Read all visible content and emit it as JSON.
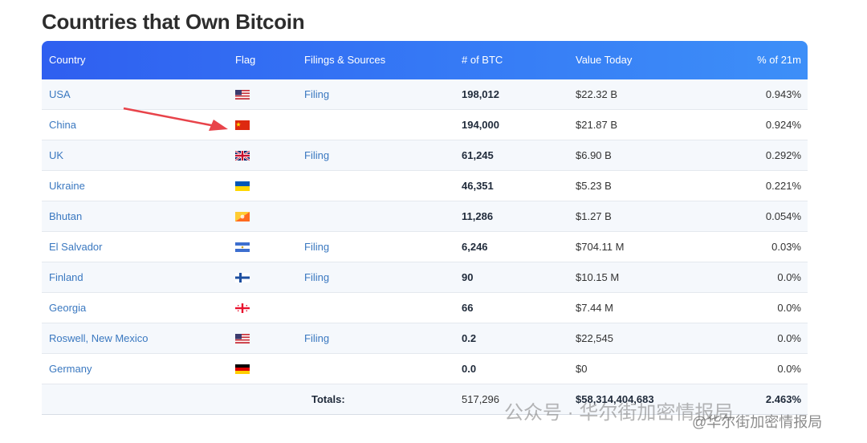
{
  "title": "Countries that Own Bitcoin",
  "table": {
    "headers": [
      "Country",
      "Flag",
      "Filings & Sources",
      "# of BTC",
      "Value Today",
      "% of 21m"
    ],
    "rows": [
      {
        "country": "USA",
        "filing": "Filing",
        "btc": "198,012",
        "value": "$22.32 B",
        "pct": "0.943%"
      },
      {
        "country": "China",
        "filing": null,
        "btc": "194,000",
        "value": "$21.87 B",
        "pct": "0.924%"
      },
      {
        "country": "UK",
        "filing": "Filing",
        "btc": "61,245",
        "value": "$6.90 B",
        "pct": "0.292%"
      },
      {
        "country": "Ukraine",
        "filing": null,
        "btc": "46,351",
        "value": "$5.23 B",
        "pct": "0.221%"
      },
      {
        "country": "Bhutan",
        "filing": null,
        "btc": "11,286",
        "value": "$1.27 B",
        "pct": "0.054%"
      },
      {
        "country": "El Salvador",
        "filing": "Filing",
        "btc": "6,246",
        "value": "$704.11 M",
        "pct": "0.03%"
      },
      {
        "country": "Finland",
        "filing": "Filing",
        "btc": "90",
        "value": "$10.15 M",
        "pct": "0.0%"
      },
      {
        "country": "Georgia",
        "filing": null,
        "btc": "66",
        "value": "$7.44 M",
        "pct": "0.0%"
      },
      {
        "country": "Roswell, New Mexico",
        "filing": "Filing",
        "btc": "0.2",
        "value": "$22,545",
        "pct": "0.0%"
      },
      {
        "country": "Germany",
        "filing": null,
        "btc": "0.0",
        "value": "$0",
        "pct": "0.0%"
      }
    ],
    "totals": {
      "label": "Totals:",
      "btc": "517,296",
      "value": "$58,314,404,683",
      "pct": "2.463%"
    }
  },
  "watermark": {
    "main": "公众号 · 华尔街加密情报局",
    "handle": "@华尔街加密情报局"
  }
}
